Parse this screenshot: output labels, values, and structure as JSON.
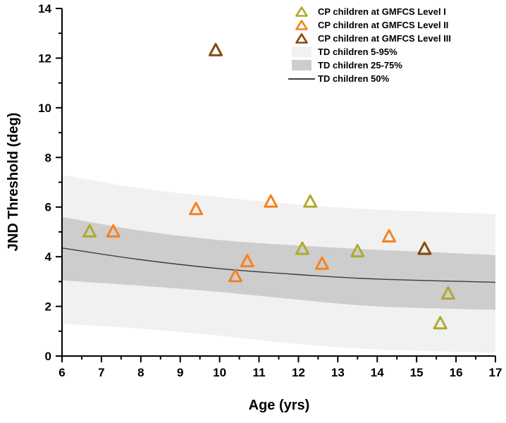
{
  "figure": {
    "background": "#ffffff",
    "axis_color": "#000000"
  },
  "chart_data": {
    "type": "scatter",
    "title": "",
    "xlabel": "Age (yrs)",
    "ylabel": "JND Threshold (deg)",
    "xlim": [
      6,
      17
    ],
    "ylim": [
      0,
      14
    ],
    "x_major_ticks": [
      6,
      7,
      8,
      9,
      10,
      11,
      12,
      13,
      14,
      15,
      16,
      17
    ],
    "x_minor_ticks": [
      6.5,
      7.5,
      8.5,
      9.5,
      10.5,
      11.5,
      12.5,
      13.5,
      14.5,
      15.5,
      16.5
    ],
    "y_major_ticks": [
      0,
      2,
      4,
      6,
      8,
      10,
      12,
      14
    ],
    "y_minor_ticks": [
      1,
      3,
      5,
      7,
      9,
      11,
      13
    ],
    "grid": false,
    "legend_position": "top-right",
    "series": [
      {
        "name": "CP children at GMFCS Level I",
        "marker": "triangle-open",
        "color": "#adab2e",
        "points": [
          [
            6.7,
            5.0
          ],
          [
            12.1,
            4.3
          ],
          [
            12.3,
            6.2
          ],
          [
            13.5,
            4.2
          ],
          [
            15.6,
            1.3
          ],
          [
            15.8,
            2.5
          ]
        ]
      },
      {
        "name": "CP children at GMFCS Level II",
        "marker": "triangle-open",
        "color": "#f5821f",
        "points": [
          [
            7.3,
            5.0
          ],
          [
            9.4,
            5.9
          ],
          [
            10.4,
            3.2
          ],
          [
            10.7,
            3.8
          ],
          [
            11.3,
            6.2
          ],
          [
            12.6,
            3.7
          ],
          [
            14.3,
            4.8
          ]
        ]
      },
      {
        "name": "CP children at GMFCS Level III",
        "marker": "triangle-open",
        "color": "#854b10",
        "points": [
          [
            9.9,
            12.3
          ],
          [
            15.2,
            4.3
          ]
        ]
      }
    ],
    "bands": [
      {
        "name": "TD children 5-95%",
        "color": "#f1f1f1",
        "upper": [
          [
            6,
            7.3
          ],
          [
            8,
            6.75
          ],
          [
            10,
            6.4
          ],
          [
            12,
            6.1
          ],
          [
            14,
            5.9
          ],
          [
            17,
            5.72
          ]
        ],
        "lower": [
          [
            6,
            1.3
          ],
          [
            8,
            1.1
          ],
          [
            10,
            0.82
          ],
          [
            12,
            0.48
          ],
          [
            14,
            0.27
          ],
          [
            17,
            0.13
          ]
        ]
      },
      {
        "name": "TD children 25-75%",
        "color": "#cdcdcd",
        "upper": [
          [
            6,
            5.6
          ],
          [
            8,
            5.05
          ],
          [
            10,
            4.67
          ],
          [
            12,
            4.45
          ],
          [
            14,
            4.28
          ],
          [
            17,
            4.07
          ]
        ],
        "lower": [
          [
            6,
            3.05
          ],
          [
            8,
            2.83
          ],
          [
            10,
            2.58
          ],
          [
            12,
            2.27
          ],
          [
            14,
            2.0
          ],
          [
            17,
            1.86
          ]
        ]
      }
    ],
    "median_line": {
      "name": "TD children 50%",
      "color": "#3c3c3c",
      "points": [
        [
          6,
          4.35
        ],
        [
          8,
          3.88
        ],
        [
          10,
          3.52
        ],
        [
          12,
          3.28
        ],
        [
          14,
          3.1
        ],
        [
          17,
          2.97
        ]
      ]
    },
    "legend": [
      {
        "label": "CP children at GMFCS Level I",
        "swatch": "triangle",
        "color": "#adab2e"
      },
      {
        "label": "CP children at GMFCS Level II",
        "swatch": "triangle",
        "color": "#f5821f"
      },
      {
        "label": "CP children at GMFCS Level III",
        "swatch": "triangle",
        "color": "#854b10"
      },
      {
        "label": "TD children 5-95%",
        "swatch": "band",
        "color": "#f1f1f1"
      },
      {
        "label": "TD children 25-75%",
        "swatch": "band",
        "color": "#cdcdcd"
      },
      {
        "label": "TD children 50%",
        "swatch": "line",
        "color": "#3c3c3c"
      }
    ]
  }
}
